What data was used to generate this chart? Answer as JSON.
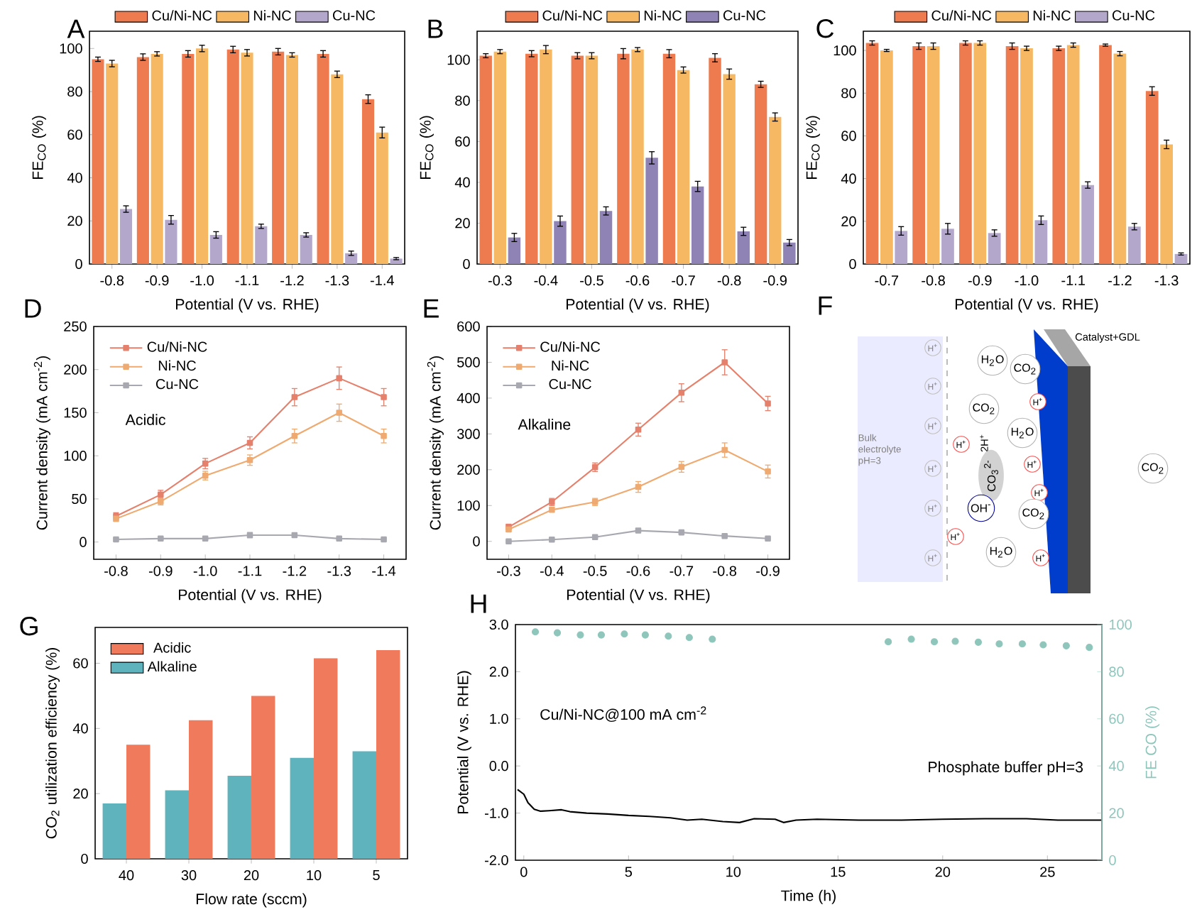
{
  "chart_data": [
    {
      "type": "bar",
      "title": "A",
      "xlabel": "Potential (V vs. RHE)",
      "ylabel": "FE$_{CO}$ (%)",
      "categories": [
        "-0.8",
        "-0.9",
        "-1.0",
        "-1.1",
        "-1.2",
        "-1.3",
        "-1.4"
      ],
      "ylim": [
        0,
        108
      ],
      "yticks": [
        0,
        20,
        40,
        60,
        80,
        100
      ],
      "legend": "top",
      "series": [
        {
          "name": "Cu/Ni-NC",
          "color": "#ee7b4f",
          "values": [
            95,
            96,
            97.5,
            99.5,
            98.5,
            97.5,
            76.5
          ],
          "errors": [
            1,
            1.5,
            1.5,
            1.5,
            1.5,
            1.5,
            2
          ]
        },
        {
          "name": "Ni-NC",
          "color": "#f6b862",
          "values": [
            93,
            97.5,
            100,
            98,
            97,
            88,
            61
          ],
          "errors": [
            1.5,
            1,
            1.5,
            1.5,
            1,
            1.5,
            2.5
          ]
        },
        {
          "name": "Cu-NC",
          "color": "#b4a7cc",
          "values": [
            25.5,
            20.5,
            13.5,
            17.5,
            13.5,
            5,
            2.5
          ],
          "errors": [
            1.5,
            2,
            1.5,
            1,
            1,
            1,
            0.5
          ]
        }
      ]
    },
    {
      "type": "bar",
      "title": "B",
      "xlabel": "Potential (V vs. RHE)",
      "ylabel": "FE$_{CO}$ (%)",
      "categories": [
        "-0.3",
        "-0.4",
        "-0.5",
        "-0.6",
        "-0.7",
        "-0.8",
        "-0.9"
      ],
      "ylim": [
        0,
        114
      ],
      "yticks": [
        0,
        20,
        40,
        60,
        80,
        100
      ],
      "legend": "top",
      "series": [
        {
          "name": "Cu/Ni-NC",
          "color": "#ee7b4f",
          "values": [
            102,
            103,
            102,
            103,
            103,
            101,
            88
          ],
          "errors": [
            1,
            1.5,
            1.5,
            2.5,
            2,
            2,
            1.5
          ]
        },
        {
          "name": "Ni-NC",
          "color": "#f6b862",
          "values": [
            104,
            105,
            102,
            105,
            95,
            93,
            72
          ],
          "errors": [
            1,
            2,
            1.5,
            1,
            1.5,
            2.5,
            2
          ]
        },
        {
          "name": "Cu-NC",
          "color": "#8f82b5",
          "values": [
            13,
            21,
            26,
            52,
            38,
            16,
            10.5
          ],
          "errors": [
            2,
            2.5,
            2,
            3,
            2.5,
            2,
            1.5
          ]
        }
      ]
    },
    {
      "type": "bar",
      "title": "C",
      "xlabel": "Potential (V vs. RHE)",
      "ylabel": "FE$_{CO}$ (%)",
      "categories": [
        "-0.7",
        "-0.8",
        "-0.9",
        "-1.0",
        "-1.1",
        "-1.2",
        "-1.3"
      ],
      "ylim": [
        0,
        109
      ],
      "yticks": [
        0,
        20,
        40,
        60,
        80,
        100
      ],
      "legend": "top",
      "series": [
        {
          "name": "Cu/Ni-NC",
          "color": "#ee7b4f",
          "values": [
            103.5,
            102,
            103.5,
            102,
            101,
            102.5,
            81
          ],
          "errors": [
            1,
            1.5,
            1,
            1.5,
            1,
            0.5,
            2
          ]
        },
        {
          "name": "Ni-NC",
          "color": "#f6b862",
          "values": [
            100,
            102,
            103.5,
            101,
            102.5,
            98.5,
            56
          ],
          "errors": [
            0.5,
            1.5,
            1,
            1,
            1,
            1,
            2
          ]
        },
        {
          "name": "Cu-NC",
          "color": "#b4a7cc",
          "values": [
            15.5,
            16.5,
            14.5,
            20.5,
            37,
            17.5,
            4.7
          ],
          "errors": [
            2,
            2.5,
            1.5,
            2,
            1.5,
            1.5,
            0.5
          ]
        }
      ]
    },
    {
      "type": "line",
      "title": "D",
      "xlabel": "Potential (V vs. RHE)",
      "ylabel": "Current density (mA cm$^{-2}$)",
      "categories": [
        "-0.8",
        "-0.9",
        "-1.0",
        "-1.1",
        "-1.2",
        "-1.3",
        "-1.4"
      ],
      "ylim": [
        -20,
        250
      ],
      "yticks": [
        0,
        50,
        100,
        150,
        200,
        250
      ],
      "legend": "top left",
      "marker": "square",
      "annotations": [
        "Acidic"
      ],
      "series": [
        {
          "name": "Cu/Ni-NC",
          "color": "#e5806c",
          "values": [
            30,
            55,
            91,
            115,
            168,
            190,
            168
          ],
          "errors": [
            4,
            5,
            6,
            7,
            10,
            13,
            10
          ]
        },
        {
          "name": "Ni-NC",
          "color": "#eeaa70",
          "values": [
            27,
            47,
            77,
            95,
            123,
            150,
            123
          ],
          "errors": [
            3,
            4,
            5,
            6,
            8,
            10,
            8
          ]
        },
        {
          "name": "Cu-NC",
          "color": "#a8a8b0",
          "values": [
            3,
            4,
            4,
            8,
            8,
            4,
            3
          ],
          "errors": [
            1,
            1,
            1,
            3,
            2,
            1,
            1
          ]
        }
      ]
    },
    {
      "type": "line",
      "title": "E",
      "xlabel": "Potential (V vs. RHE)",
      "ylabel": "Current density (mA cm$^{-2}$)",
      "categories": [
        "-0.3",
        "-0.4",
        "-0.5",
        "-0.6",
        "-0.7",
        "-0.8",
        "-0.9"
      ],
      "ylim": [
        -50,
        600
      ],
      "yticks": [
        0,
        100,
        200,
        300,
        400,
        500,
        600
      ],
      "legend": "top left",
      "marker": "square",
      "annotations": [
        "Alkaline"
      ],
      "series": [
        {
          "name": "Cu/Ni-NC",
          "color": "#e5806c",
          "values": [
            40,
            110,
            207,
            312,
            415,
            500,
            385
          ],
          "errors": [
            8,
            10,
            12,
            18,
            25,
            35,
            20
          ]
        },
        {
          "name": "Ni-NC",
          "color": "#eeaa70",
          "values": [
            33,
            88,
            110,
            152,
            208,
            255,
            195
          ],
          "errors": [
            5,
            6,
            10,
            15,
            15,
            20,
            18
          ]
        },
        {
          "name": "Cu-NC",
          "color": "#a8a8b0",
          "values": [
            0,
            5,
            12,
            30,
            25,
            15,
            8
          ],
          "errors": [
            2,
            2,
            3,
            5,
            3,
            3,
            2
          ]
        }
      ]
    },
    {
      "type": "other",
      "title": "F",
      "annotations": [
        "Catalyst+GDL",
        "Bulk electrolyte pH=3",
        "H$^{+}$",
        "H$^{+}$",
        "H$^{+}$",
        "H$^{+}$",
        "H$^{+}$",
        "H$^{+}$",
        "H$^{+}$",
        "H$^{+}$",
        "H$^{+}$",
        "H$^{+}$",
        "H$^{+}$",
        "H$^{+}$",
        "H$_{2}$O",
        "H$_{2}$O",
        "H$_{2}$O",
        "CO$_{2}$",
        "CO$_{2}$",
        "CO$_{2}$",
        "CO$_{2}$",
        "2H$^{+}$",
        "CO$_{3}$$^{2-}$",
        "OH$^{-}$"
      ]
    },
    {
      "type": "bar",
      "title": "G",
      "xlabel": "Flow rate (sccm)",
      "ylabel": "CO$_{2}$ utilization efficiency (%)",
      "categories": [
        "40",
        "30",
        "20",
        "10",
        "5"
      ],
      "ylim": [
        0,
        71
      ],
      "yticks": [
        0,
        20,
        40,
        60
      ],
      "legend": "top left",
      "series": [
        {
          "name": "Alkaline",
          "color": "#5fb3bd",
          "values": [
            17,
            21,
            25.5,
            31,
            33
          ]
        },
        {
          "name": "Acidic",
          "color": "#f07a5c",
          "values": [
            35,
            42.5,
            50,
            61.5,
            64
          ]
        }
      ]
    },
    {
      "type": "line",
      "title": "H",
      "xlabel": "Time (h)",
      "ylabel": "Potential (V vs. RHE)",
      "y2label": "FE CO (%)",
      "xlim": [
        -0.4,
        27.6
      ],
      "xticks": [
        0,
        5,
        10,
        15,
        20,
        25
      ],
      "ylim": [
        -2,
        3
      ],
      "yticks": [
        {
          "value": -2,
          "label": "-2.0"
        },
        {
          "value": -1,
          "label": "-1.0"
        },
        {
          "value": 0,
          "label": "0.0"
        },
        {
          "value": 1,
          "label": "1.0"
        },
        {
          "value": 2,
          "label": "2.0"
        },
        {
          "value": 3,
          "label": "3.0"
        }
      ],
      "y2lim": [
        0,
        100
      ],
      "y2ticks": [
        0,
        20,
        40,
        60,
        80,
        100
      ],
      "annotations": [
        "Cu/Ni-NC@100 mA cm$^{-2}$",
        "Phosphate buffer pH=3"
      ],
      "series": [
        {
          "color": "#000000",
          "x": [
            -0.3,
            0,
            0.2,
            0.5,
            0.8,
            1.2,
            1.8,
            2.2,
            3,
            4,
            5,
            6,
            7,
            7.8,
            8.5,
            9.5,
            10.3,
            11,
            12,
            12.4,
            13,
            14,
            16,
            18,
            20,
            22,
            24,
            25.5,
            27.6
          ],
          "values": [
            -0.5,
            -0.6,
            -0.78,
            -0.92,
            -0.96,
            -0.95,
            -0.93,
            -0.97,
            -1.0,
            -1.02,
            -1.05,
            -1.07,
            -1.1,
            -1.15,
            -1.13,
            -1.18,
            -1.2,
            -1.12,
            -1.13,
            -1.2,
            -1.15,
            -1.13,
            -1.15,
            -1.15,
            -1.13,
            -1.12,
            -1.12,
            -1.15,
            -1.15
          ]
        },
        {
          "type": "scatter",
          "axis": "y2",
          "color": "#8ec6bb",
          "x": [
            0.55,
            1.6,
            2.7,
            3.7,
            4.8,
            5.8,
            6.9,
            7.9,
            9.0,
            17.4,
            18.5,
            19.6,
            20.6,
            21.7,
            22.7,
            23.8,
            24.8,
            25.9,
            27.0
          ],
          "values": [
            96.9,
            96.5,
            95.6,
            95.6,
            96,
            95.6,
            95.1,
            94.5,
            93.8,
            92.7,
            93.8,
            92.7,
            92.9,
            92.5,
            91.8,
            91.8,
            91.4,
            91,
            90.3
          ]
        }
      ]
    }
  ]
}
